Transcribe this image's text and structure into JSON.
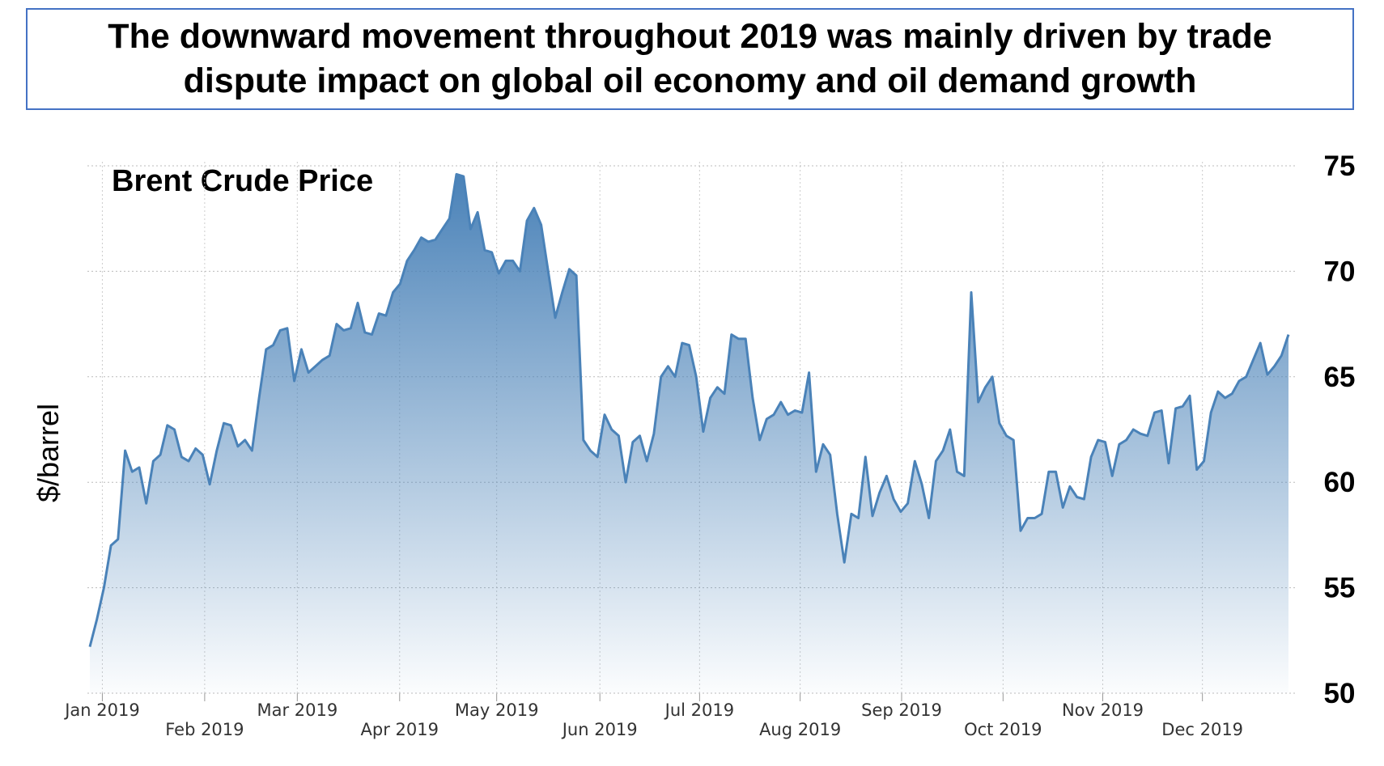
{
  "header": {
    "title": "The downward movement throughout 2019 was mainly driven by trade dispute impact on global oil economy and oil demand growth"
  },
  "chart_data": {
    "type": "area",
    "title": "Brent Crude Price",
    "y_label": "$/barrel",
    "x_labels": [
      "Jan 2019",
      "Feb 2019",
      "Mar 2019",
      "Apr 2019",
      "May 2019",
      "Jun 2019",
      "Jul 2019",
      "Aug 2019",
      "Sep 2019",
      "Oct 2019",
      "Nov 2019",
      "Dec 2019"
    ],
    "ylim": [
      50,
      75
    ],
    "yticks": [
      50,
      55,
      60,
      65,
      70,
      75
    ],
    "grid": true,
    "series": [
      {
        "name": "Brent Crude Price",
        "color": "#4a82b8",
        "values": [
          52.2,
          53.5,
          55,
          57,
          57.3,
          61.5,
          60.5,
          60.7,
          59,
          61,
          61.3,
          62.7,
          62.5,
          61.2,
          61.0,
          61.6,
          61.3,
          59.9,
          61.5,
          62.8,
          62.7,
          61.7,
          62,
          61.5,
          64,
          66.3,
          66.5,
          67.2,
          67.3,
          64.8,
          66.3,
          65.2,
          65.5,
          65.8,
          66,
          67.5,
          67.2,
          67.3,
          68.5,
          67.1,
          67.0,
          68,
          67.9,
          69,
          69.4,
          70.5,
          71,
          71.6,
          71.4,
          71.5,
          72,
          72.5,
          74.6,
          74.5,
          72,
          72.8,
          71,
          70.9,
          69.9,
          70.5,
          70.5,
          70.0,
          72.4,
          73,
          72.2,
          70.0,
          67.8,
          69,
          70.1,
          69.8,
          62,
          61.5,
          61.2,
          63.2,
          62.5,
          62.2,
          60.0,
          61.9,
          62.2,
          61,
          62.3,
          65,
          65.5,
          65,
          66.6,
          66.5,
          65,
          62.4,
          64,
          64.5,
          64.2,
          67,
          66.8,
          66.8,
          64,
          62,
          63,
          63.2,
          63.8,
          63.2,
          63.4,
          63.3,
          65.2,
          60.5,
          61.8,
          61.3,
          58.5,
          56.2,
          58.5,
          58.3,
          61.2,
          58.4,
          59.5,
          60.3,
          59.2,
          58.6,
          59.0,
          61.0,
          59.9,
          58.3,
          61.0,
          61.5,
          62.5,
          60.5,
          60.3,
          69.0,
          63.8,
          64.5,
          65.0,
          62.8,
          62.2,
          62.0,
          57.7,
          58.3,
          58.3,
          58.5,
          60.5,
          60.5,
          58.8,
          59.8,
          59.3,
          59.2,
          61.2,
          62,
          61.9,
          60.3,
          61.8,
          62.0,
          62.5,
          62.3,
          62.2,
          63.3,
          63.4,
          60.9,
          63.5,
          63.6,
          64.1,
          60.6,
          61.0,
          63.3,
          64.3,
          64.0,
          64.2,
          64.8,
          65.0,
          65.8,
          66.6,
          65.1,
          65.5,
          66.0,
          67.0
        ]
      }
    ]
  }
}
